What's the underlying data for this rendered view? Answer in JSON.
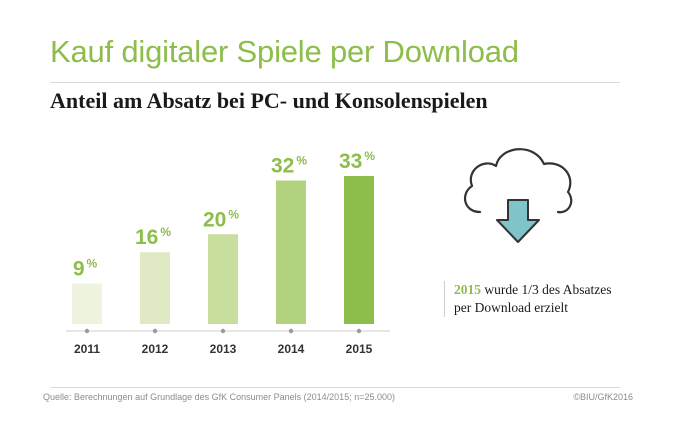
{
  "title": "Kauf digitaler Spiele per Download",
  "subtitle": "Anteil am Absatz bei PC- und Konsolenspielen",
  "chart_data": {
    "type": "bar",
    "categories": [
      "2011",
      "2012",
      "2013",
      "2014",
      "2015"
    ],
    "values": [
      9,
      16,
      20,
      32,
      33
    ],
    "unit": "%",
    "ylim": [
      0,
      33
    ],
    "grid": false,
    "colors": [
      "#eef3df",
      "#dfeac5",
      "#c7de9d",
      "#b3d27f",
      "#8dbd4a"
    ]
  },
  "note": {
    "highlight": "2015",
    "line1_rest": " wurde 1/3 des Absatzes",
    "line2": "per Download erzielt"
  },
  "icon": "cloud-download-icon",
  "colors": {
    "accent": "#8dbd4a",
    "arrow": "#7fc4c9"
  },
  "footer": {
    "source": "Quelle: Berechnungen auf Grundlage des GfK Consumer Panels (2014/2015; n=25.000)",
    "copyright": "©BIU/GfK2016"
  }
}
